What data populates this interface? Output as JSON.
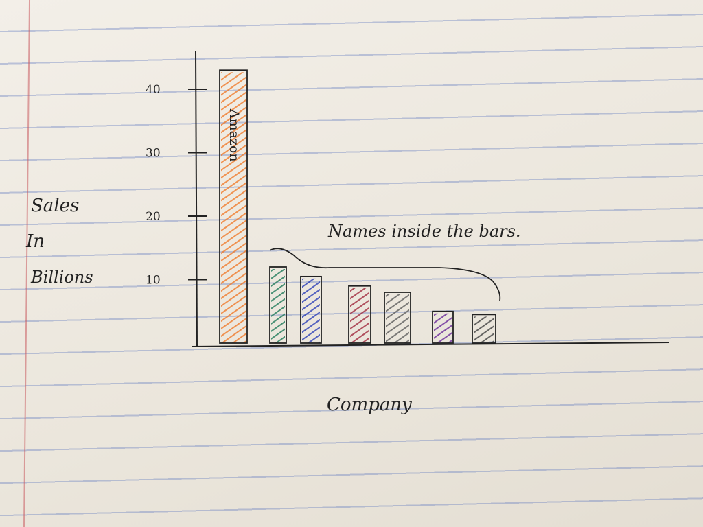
{
  "chart_data": {
    "type": "bar",
    "ylabel_lines": [
      "Sales",
      "In",
      "Billions"
    ],
    "xlabel": "Company",
    "annotation": "Names inside the bars.",
    "yticks": [
      10,
      20,
      30,
      40
    ],
    "ylim": [
      0,
      40
    ],
    "grid": false,
    "series": [
      {
        "values": [
          43,
          12,
          10.5,
          9,
          8,
          5,
          4.5
        ],
        "colors": [
          "#f07a2a",
          "#1f7a5a",
          "#2b3fb8",
          "#a0283c",
          "#5e5e5e",
          "#6a2a9a",
          "#444444"
        ]
      }
    ],
    "bar_labels": [
      "Amazon",
      "",
      "",
      "",
      "",
      "",
      ""
    ]
  }
}
